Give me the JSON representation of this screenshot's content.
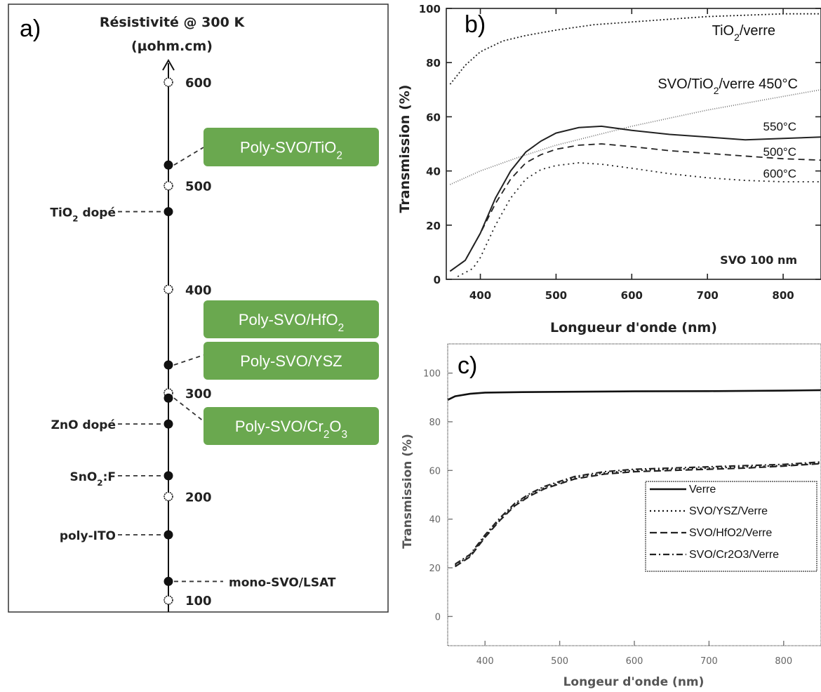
{
  "chart_data": [
    {
      "panel": "a)",
      "type": "scatter",
      "axis_title_line1": "Résistivité @ 300 K",
      "axis_title_line2": "(µohm.cm)",
      "ylim": [
        80,
        645
      ],
      "ticks": [
        100,
        200,
        300,
        400,
        500,
        600
      ],
      "points": [
        {
          "value": 520,
          "label": "Poly-SVO/TiO",
          "sub": "2",
          "after": "",
          "side": "box"
        },
        {
          "value": 475,
          "label": "TiO",
          "sub": "2",
          "after": " dopé",
          "side": "left"
        },
        {
          "value": 327,
          "label": "Poly-SVO/YSZ",
          "sub": "",
          "after": "",
          "side": "box"
        },
        {
          "value": 295,
          "label": "Poly-SVO/Cr",
          "sub": "2",
          "after": "O",
          "sub2": "3",
          "side": "box"
        },
        {
          "value": 270,
          "label": "ZnO dopé",
          "sub": "",
          "after": "",
          "side": "left"
        },
        {
          "value": 220,
          "label": "SnO",
          "sub": "2",
          "after": ":F",
          "side": "left"
        },
        {
          "value": 163,
          "label": "poly-ITO",
          "sub": "",
          "after": "",
          "side": "left"
        },
        {
          "value": 118,
          "label": "mono-SVO/LSAT",
          "sub": "",
          "after": "",
          "side": "right"
        }
      ],
      "extra_box": {
        "label": "Poly-SVO/HfO",
        "sub": "2"
      },
      "box_color": "#6aa84f"
    },
    {
      "panel": "b)",
      "type": "line",
      "xlabel": "Longueur d'onde (nm)",
      "ylabel": "Transmission (%)",
      "xlim": [
        355,
        850
      ],
      "ylim": [
        0,
        100
      ],
      "xticks": [
        400,
        500,
        600,
        700,
        800
      ],
      "yticks": [
        0,
        20,
        40,
        60,
        80,
        100
      ],
      "annotation": "SVO 100 nm",
      "series": [
        {
          "name": "TiO2/verre",
          "label_main": "TiO",
          "label_sub": "2",
          "label_tail": "/verre",
          "dash": "2,3",
          "x": [
            360,
            380,
            400,
            430,
            460,
            500,
            550,
            600,
            650,
            700,
            750,
            800,
            850
          ],
          "y": [
            72,
            79,
            84,
            88,
            90,
            92,
            94,
            95,
            96,
            97,
            97.5,
            98,
            98
          ]
        },
        {
          "name": "SVO/TiO2/verre 450°C",
          "label_main": "SVO/TiO",
          "label_sub": "2",
          "label_tail": "/verre 450°C",
          "dash": "1,2",
          "x": [
            360,
            400,
            450,
            500,
            550,
            600,
            650,
            700,
            750,
            800,
            850
          ],
          "y": [
            35,
            40,
            45,
            49.5,
            53,
            56.5,
            59.5,
            62.5,
            65,
            67.5,
            70
          ]
        },
        {
          "name": "550°C",
          "label_main": "550°C",
          "label_sub": "",
          "label_tail": "",
          "dash": "",
          "x": [
            360,
            380,
            400,
            420,
            440,
            460,
            480,
            500,
            530,
            560,
            600,
            650,
            700,
            750,
            800,
            850
          ],
          "y": [
            3,
            7,
            17,
            30,
            40,
            47,
            51,
            54,
            56,
            56.5,
            55,
            53.5,
            52.5,
            51.5,
            52,
            52.5
          ]
        },
        {
          "name": "500°C",
          "label_main": "500°C",
          "label_sub": "",
          "label_tail": "",
          "dash": "9,6",
          "x": [
            360,
            380,
            400,
            420,
            440,
            460,
            480,
            500,
            530,
            560,
            600,
            650,
            700,
            750,
            800,
            850
          ],
          "y": [
            3,
            7,
            17,
            28,
            37,
            43,
            46,
            48,
            49.5,
            50,
            49,
            47.5,
            46.5,
            45.5,
            44.5,
            44
          ]
        },
        {
          "name": "600°C",
          "label_main": "600°C",
          "label_sub": "",
          "label_tail": "",
          "dash": "2,5",
          "x": [
            370,
            390,
            400,
            420,
            440,
            460,
            480,
            500,
            530,
            560,
            600,
            650,
            700,
            750,
            800,
            850
          ],
          "y": [
            1,
            4,
            8,
            20,
            30,
            37,
            40.5,
            42,
            43,
            42.5,
            41,
            39,
            37.5,
            36.5,
            36,
            36
          ]
        }
      ]
    },
    {
      "panel": "c)",
      "type": "line",
      "xlabel": "Longeur d'onde (nm)",
      "ylabel": "Transmission (%)",
      "xlim": [
        350,
        850
      ],
      "ylim": [
        -12,
        112
      ],
      "xticks": [
        400,
        500,
        600,
        700,
        800
      ],
      "yticks": [
        0,
        20,
        40,
        60,
        80,
        100
      ],
      "legend": [
        "Verre",
        "SVO/YSZ/Verre",
        "SVO/HfO2/Verre",
        "SVO/Cr2O3/Verre"
      ],
      "series": [
        {
          "name": "Verre",
          "style": "solid",
          "x": [
            350,
            360,
            380,
            400,
            450,
            500,
            600,
            700,
            800,
            850
          ],
          "y": [
            89,
            90.5,
            91.5,
            92,
            92.2,
            92.3,
            92.5,
            92.6,
            92.8,
            93
          ]
        },
        {
          "name": "SVO/YSZ/Verre",
          "style": "x",
          "x": [
            360,
            380,
            400,
            420,
            440,
            460,
            480,
            500,
            520,
            540,
            560,
            600,
            650,
            700,
            750,
            800,
            850
          ],
          "y": [
            21,
            25,
            33,
            40,
            46,
            50,
            53,
            55,
            57,
            58,
            59,
            60,
            60.5,
            61,
            61.5,
            62,
            63
          ]
        },
        {
          "name": "SVO/HfO2/Verre",
          "style": "dash",
          "x": [
            360,
            380,
            400,
            420,
            440,
            460,
            480,
            500,
            520,
            540,
            560,
            600,
            650,
            700,
            750,
            800,
            850
          ],
          "y": [
            20.5,
            24.5,
            32.5,
            39.5,
            45.5,
            49.5,
            52.5,
            54.5,
            56.5,
            57.5,
            58.5,
            59.5,
            60,
            60.5,
            61,
            61.8,
            62.8
          ]
        },
        {
          "name": "SVO/Cr2O3/Verre",
          "style": "dashdot",
          "x": [
            360,
            380,
            400,
            420,
            440,
            460,
            480,
            500,
            520,
            540,
            560,
            600,
            650,
            700,
            750,
            800,
            850
          ],
          "y": [
            21.5,
            25.5,
            33.5,
            40.5,
            46.5,
            50.5,
            53.5,
            55.5,
            57.5,
            58.5,
            59.5,
            60.5,
            61,
            61.5,
            62,
            62.5,
            63.5
          ]
        }
      ]
    }
  ]
}
